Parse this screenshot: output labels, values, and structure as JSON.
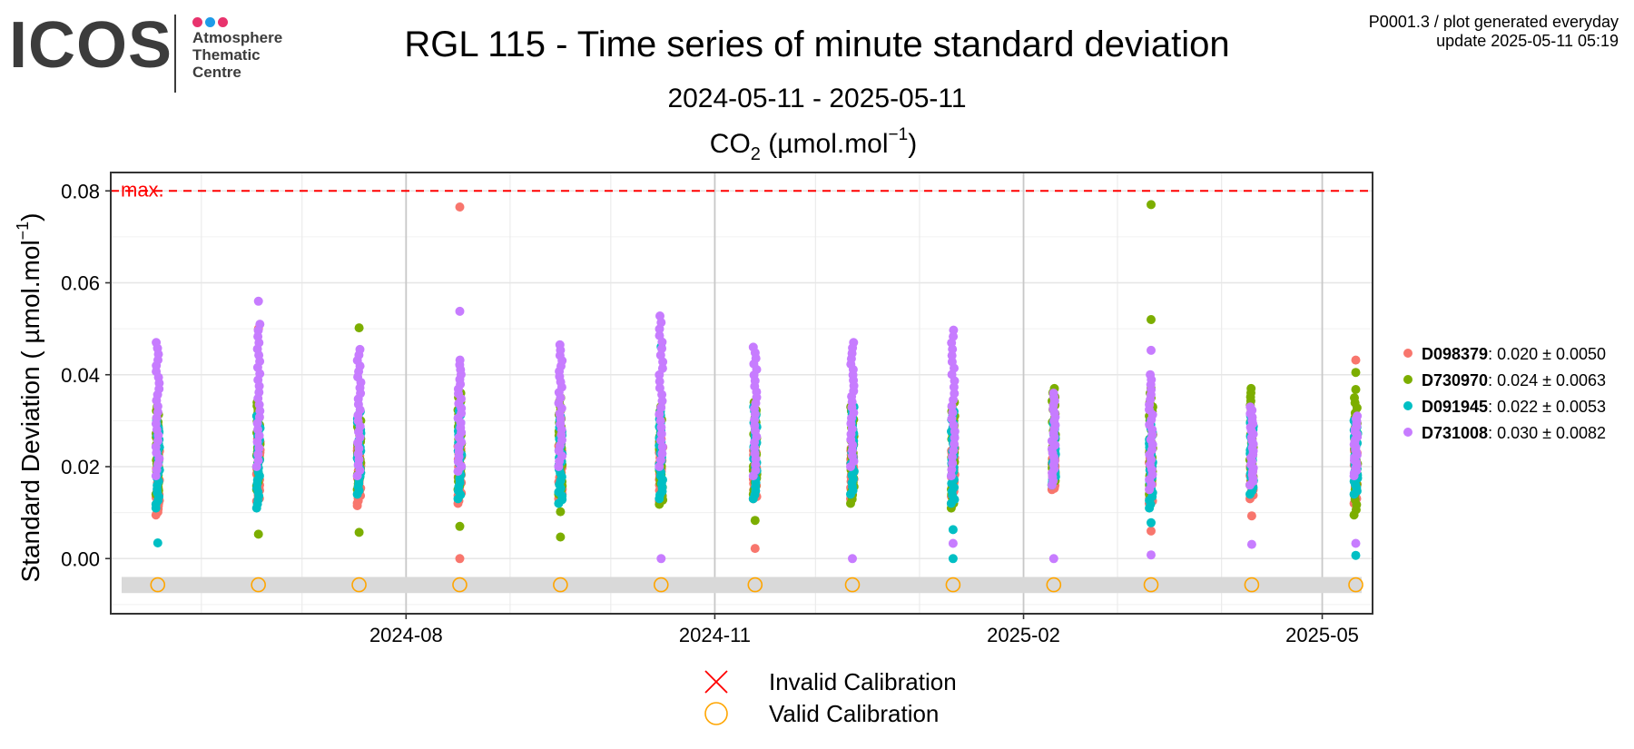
{
  "logo": {
    "text": "ICOS",
    "lines": [
      "Atmosphere",
      "Thematic",
      "Centre"
    ],
    "dot_colors": [
      "#e8336d",
      "#1e9be8",
      "#e8336d"
    ]
  },
  "header": {
    "info": "P0001.3 / plot generated everyday",
    "update": "update  2025-05-11 05:19"
  },
  "chart_data": {
    "type": "scatter",
    "title": "RGL 115 - Time series of minute standard deviation",
    "subtitle": "2024-05-11 - 2025-05-11",
    "gas_label": {
      "base": "CO",
      "sub": "2",
      "unit_pre": " (µmol.mol",
      "sup": "−1",
      "unit_post": ")"
    },
    "ylabel": {
      "base": "Standard Deviation ( µmol.mol",
      "sup": "−1",
      "post": ")"
    },
    "x_type": "date",
    "xlim": [
      "2024-05-05",
      "2025-05-16"
    ],
    "ylim": [
      -0.012,
      0.084
    ],
    "x_ticks": [
      "2024-08-01",
      "2024-11-01",
      "2025-02-01",
      "2025-05-01"
    ],
    "x_tick_labels": [
      "2024-08",
      "2024-11",
      "2025-02",
      "2025-05"
    ],
    "y_ticks": [
      0.0,
      0.02,
      0.04,
      0.06,
      0.08
    ],
    "y_tick_labels": [
      "0.00",
      "0.02",
      "0.04",
      "0.06",
      "0.08"
    ],
    "threshold": {
      "value": 0.08,
      "label": "max.",
      "color": "#ff0000"
    },
    "calibration_band": {
      "y_range": [
        -0.0075,
        -0.004
      ],
      "color": "#d9d9d9"
    },
    "calibration_marker_y": -0.0057,
    "calibration_dates": [
      "2024-05-19",
      "2024-06-18",
      "2024-07-18",
      "2024-08-17",
      "2024-09-16",
      "2024-10-16",
      "2024-11-13",
      "2024-12-12",
      "2025-01-11",
      "2025-02-10",
      "2025-03-11",
      "2025-04-10",
      "2025-05-11"
    ],
    "grid": true,
    "legend_position": "right",
    "series": [
      {
        "name": "D098379",
        "stats": ": 0.020 ± 0.0050",
        "color": "#F8766D",
        "groups": [
          {
            "date": "2024-05-19",
            "min": 0.0095,
            "max": 0.024,
            "extra": []
          },
          {
            "date": "2024-06-18",
            "min": 0.0125,
            "max": 0.026,
            "extra": [
              0.05
            ]
          },
          {
            "date": "2024-07-18",
            "min": 0.0115,
            "max": 0.024,
            "extra": []
          },
          {
            "date": "2024-08-17",
            "min": 0.012,
            "max": 0.025,
            "extra": [
              0.0765,
              0.0
            ]
          },
          {
            "date": "2024-09-16",
            "min": 0.013,
            "max": 0.025,
            "extra": []
          },
          {
            "date": "2024-10-16",
            "min": 0.0125,
            "max": 0.026,
            "extra": []
          },
          {
            "date": "2024-11-13",
            "min": 0.013,
            "max": 0.024,
            "extra": [
              0.0022
            ]
          },
          {
            "date": "2024-12-12",
            "min": 0.013,
            "max": 0.024,
            "extra": []
          },
          {
            "date": "2025-01-11",
            "min": 0.012,
            "max": 0.024,
            "extra": []
          },
          {
            "date": "2025-02-10",
            "min": 0.015,
            "max": 0.022,
            "extra": []
          },
          {
            "date": "2025-03-11",
            "min": 0.012,
            "max": 0.024,
            "extra": [
              0.006
            ]
          },
          {
            "date": "2025-04-10",
            "min": 0.013,
            "max": 0.022,
            "extra": [
              0.0093
            ]
          },
          {
            "date": "2025-05-11",
            "min": 0.012,
            "max": 0.024,
            "extra": [
              0.0432
            ]
          }
        ]
      },
      {
        "name": "D730970",
        "stats": ": 0.024 ± 0.0063",
        "color": "#7CAE00",
        "groups": [
          {
            "date": "2024-05-19",
            "min": 0.014,
            "max": 0.033,
            "extra": []
          },
          {
            "date": "2024-06-18",
            "min": 0.015,
            "max": 0.034,
            "extra": [
              0.0053
            ]
          },
          {
            "date": "2024-07-18",
            "min": 0.015,
            "max": 0.03,
            "extra": [
              0.0502,
              0.0057
            ]
          },
          {
            "date": "2024-08-17",
            "min": 0.015,
            "max": 0.036,
            "extra": [
              0.007
            ]
          },
          {
            "date": "2024-09-16",
            "min": 0.014,
            "max": 0.035,
            "extra": [
              0.0102,
              0.0047
            ]
          },
          {
            "date": "2024-10-16",
            "min": 0.0118,
            "max": 0.033,
            "extra": []
          },
          {
            "date": "2024-11-13",
            "min": 0.014,
            "max": 0.034,
            "extra": [
              0.0083
            ]
          },
          {
            "date": "2024-12-12",
            "min": 0.012,
            "max": 0.033,
            "extra": []
          },
          {
            "date": "2025-01-11",
            "min": 0.011,
            "max": 0.034,
            "extra": []
          },
          {
            "date": "2025-02-10",
            "min": 0.016,
            "max": 0.037,
            "extra": []
          },
          {
            "date": "2025-03-11",
            "min": 0.014,
            "max": 0.037,
            "extra": [
              0.077,
              0.052
            ]
          },
          {
            "date": "2025-04-10",
            "min": 0.016,
            "max": 0.037,
            "extra": []
          },
          {
            "date": "2025-05-11",
            "min": 0.0095,
            "max": 0.035,
            "extra": [
              0.0405,
              0.0368
            ]
          }
        ]
      },
      {
        "name": "D091945",
        "stats": ": 0.022 ± 0.0053",
        "color": "#00BFC4",
        "groups": [
          {
            "date": "2024-05-19",
            "min": 0.011,
            "max": 0.03,
            "extra": [
              0.0034
            ]
          },
          {
            "date": "2024-06-18",
            "min": 0.011,
            "max": 0.031,
            "extra": []
          },
          {
            "date": "2024-07-18",
            "min": 0.014,
            "max": 0.032,
            "extra": []
          },
          {
            "date": "2024-08-17",
            "min": 0.013,
            "max": 0.033,
            "extra": []
          },
          {
            "date": "2024-09-16",
            "min": 0.012,
            "max": 0.031,
            "extra": []
          },
          {
            "date": "2024-10-16",
            "min": 0.013,
            "max": 0.032,
            "extra": [
              0.0461
            ]
          },
          {
            "date": "2024-11-13",
            "min": 0.013,
            "max": 0.033,
            "extra": []
          },
          {
            "date": "2024-12-12",
            "min": 0.014,
            "max": 0.033,
            "extra": []
          },
          {
            "date": "2025-01-11",
            "min": 0.012,
            "max": 0.032,
            "extra": [
              0.0063,
              0.0
            ]
          },
          {
            "date": "2025-02-10",
            "min": 0.016,
            "max": 0.03,
            "extra": []
          },
          {
            "date": "2025-03-11",
            "min": 0.011,
            "max": 0.03,
            "extra": [
              0.0078
            ]
          },
          {
            "date": "2025-04-10",
            "min": 0.014,
            "max": 0.031,
            "extra": []
          },
          {
            "date": "2025-05-11",
            "min": 0.014,
            "max": 0.03,
            "extra": [
              0.0007
            ]
          }
        ]
      },
      {
        "name": "D731008",
        "stats": ": 0.030 ± 0.0082",
        "color": "#C77CFF",
        "groups": [
          {
            "date": "2024-05-19",
            "min": 0.018,
            "max": 0.047,
            "extra": []
          },
          {
            "date": "2024-06-18",
            "min": 0.02,
            "max": 0.051,
            "extra": [
              0.056
            ]
          },
          {
            "date": "2024-07-18",
            "min": 0.018,
            "max": 0.0455,
            "extra": []
          },
          {
            "date": "2024-08-17",
            "min": 0.019,
            "max": 0.0432,
            "extra": [
              0.0538
            ]
          },
          {
            "date": "2024-09-16",
            "min": 0.02,
            "max": 0.0465,
            "extra": []
          },
          {
            "date": "2024-10-16",
            "min": 0.02,
            "max": 0.0528,
            "extra": [
              0.0
            ]
          },
          {
            "date": "2024-11-13",
            "min": 0.018,
            "max": 0.046,
            "extra": []
          },
          {
            "date": "2024-12-12",
            "min": 0.02,
            "max": 0.047,
            "extra": [
              0.0
            ]
          },
          {
            "date": "2025-01-11",
            "min": 0.018,
            "max": 0.0497,
            "extra": [
              0.0033
            ]
          },
          {
            "date": "2025-02-10",
            "min": 0.016,
            "max": 0.036,
            "extra": [
              0.0
            ]
          },
          {
            "date": "2025-03-11",
            "min": 0.015,
            "max": 0.04,
            "extra": [
              0.0453,
              0.0008
            ]
          },
          {
            "date": "2025-04-10",
            "min": 0.016,
            "max": 0.033,
            "extra": [
              0.0031
            ]
          },
          {
            "date": "2025-05-11",
            "min": 0.018,
            "max": 0.031,
            "extra": [
              0.0033
            ]
          }
        ]
      }
    ],
    "shape_legend": [
      {
        "label": "Invalid Calibration",
        "shape": "cross",
        "color": "#ff0000"
      },
      {
        "label": "Valid Calibration",
        "shape": "circle",
        "color": "#FFA500"
      }
    ]
  }
}
